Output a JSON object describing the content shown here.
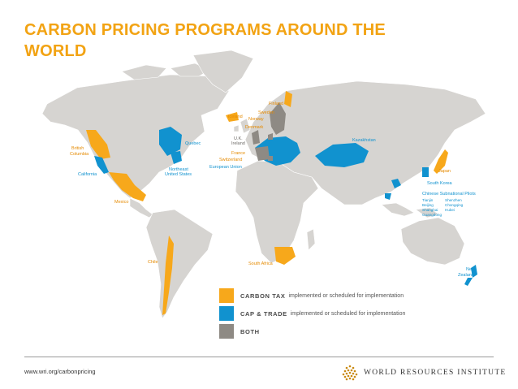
{
  "title": "CARBON PRICING PROGRAMS AROUND THE WORLD",
  "colors": {
    "carbon_tax": "#F7A81B",
    "cap_trade": "#1192CF",
    "both": "#8E8A84",
    "land": "#D6D4D1",
    "title": "#F2A313"
  },
  "labels": {
    "british_columbia": [
      "British",
      "Columbia"
    ],
    "california": "California",
    "quebec": "Quebec",
    "northeast_us": [
      "Northeast",
      "United States"
    ],
    "mexico": "Mexico",
    "chile": "Chile",
    "iceland": "Iceland",
    "finland": "Finland",
    "sweden": "Sweden",
    "norway": "Norway",
    "denmark": "Denmark",
    "uk_ireland": [
      "U.K.",
      "Ireland"
    ],
    "france": "France",
    "switzerland": "Switzerland",
    "european_union": "European Union",
    "kazakhstan": "Kazakhstan",
    "japan": "Japan",
    "south_korea": "South Korea",
    "south_africa": "South Africa",
    "new_zealand": [
      "New",
      "Zealand"
    ],
    "chinese_pilots_title": "Chinese Subnational Pilots",
    "chinese_pilots_col1": [
      "Tianjin",
      "Beijing",
      "Shanghai",
      "Guangdong"
    ],
    "chinese_pilots_col2": [
      "Shenzhen",
      "Chongqing",
      "Hubei"
    ]
  },
  "legend": [
    {
      "key": "carbon_tax",
      "heading": "CARBON TAX",
      "desc": "implemented or scheduled for implementation"
    },
    {
      "key": "cap_trade",
      "heading": "CAP & TRADE",
      "desc": "implemented or scheduled for implementation"
    },
    {
      "key": "both",
      "heading": "BOTH",
      "desc": ""
    }
  ],
  "footer": {
    "url": "www.wri.org/carbonpricing",
    "org": "WORLD RESOURCES INSTITUTE"
  }
}
